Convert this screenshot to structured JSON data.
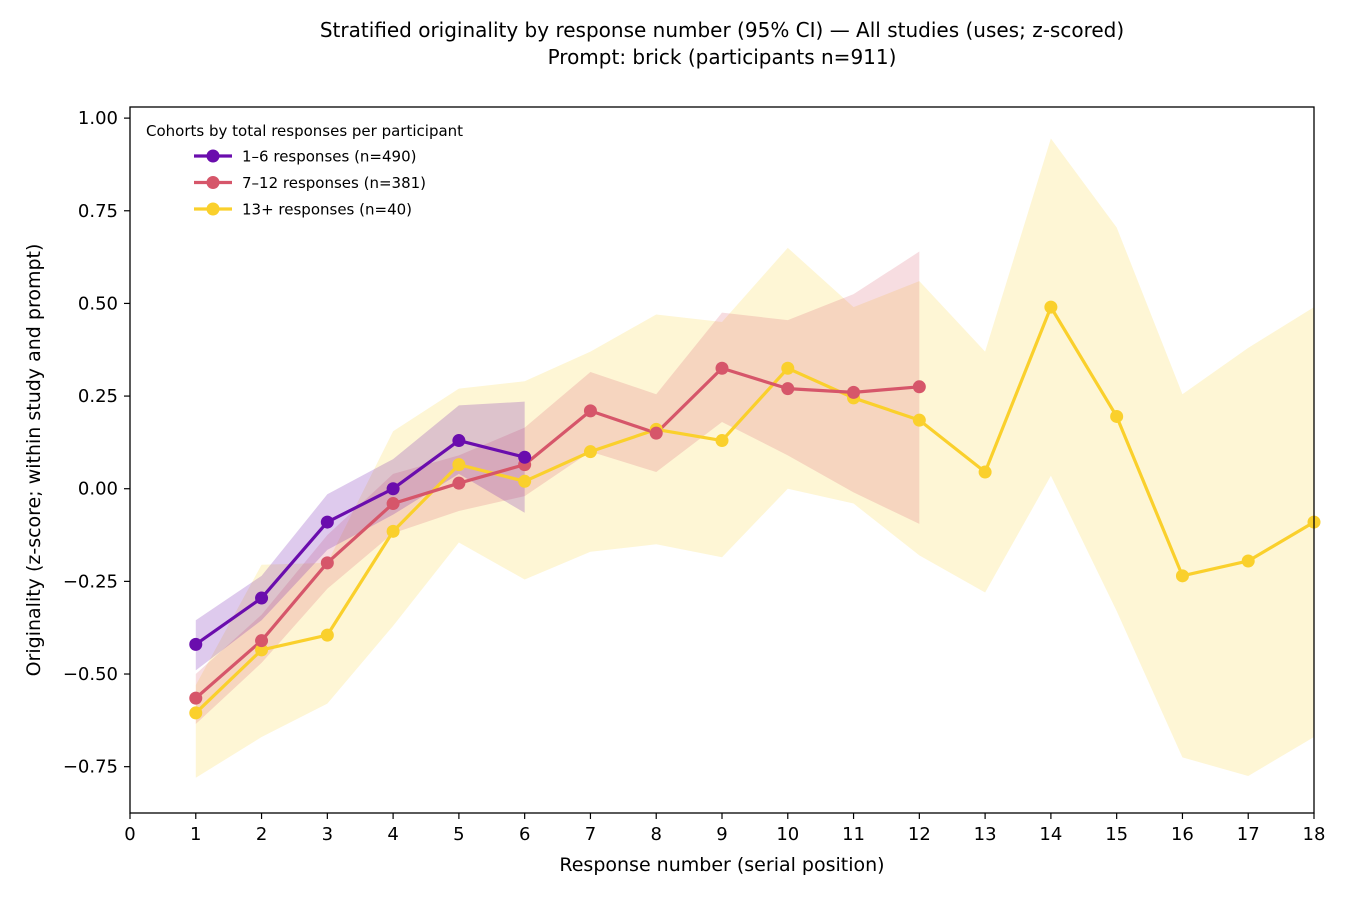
{
  "chart_data": {
    "type": "line",
    "title": "Stratified originality by response number (95% CI) — All studies (uses; z-scored)",
    "subtitle": "Prompt: brick (participants n=911)",
    "xlabel": "Response number (serial position)",
    "ylabel": "Originality (z-score; within study and prompt)",
    "xlim": [
      0,
      18
    ],
    "ylim": [
      -0.875,
      1.03
    ],
    "xticks": [
      0,
      1,
      2,
      3,
      4,
      5,
      6,
      7,
      8,
      9,
      10,
      11,
      12,
      13,
      14,
      15,
      16,
      17,
      18
    ],
    "yticks": [
      -0.75,
      -0.5,
      -0.25,
      0.0,
      0.25,
      0.5,
      0.75,
      1.0
    ],
    "ytick_labels": [
      "−0.75",
      "−0.50",
      "−0.25",
      "0.00",
      "0.25",
      "0.50",
      "0.75",
      "1.00"
    ],
    "grid": false,
    "legend_position": "top-left",
    "legend_title": "Cohorts by total responses per participant",
    "series": [
      {
        "name": "1–6 responses (n=490)",
        "color": "#6a0dad",
        "x": [
          1,
          2,
          3,
          4,
          5,
          6
        ],
        "y": [
          -0.42,
          -0.295,
          -0.09,
          0.0,
          0.13,
          0.085
        ],
        "ci_low": [
          -0.49,
          -0.355,
          -0.165,
          -0.07,
          0.04,
          -0.065
        ],
        "ci_high": [
          -0.355,
          -0.235,
          -0.015,
          0.08,
          0.225,
          0.235
        ]
      },
      {
        "name": "7–12 responses (n=381)",
        "color": "#d6566a",
        "x": [
          1,
          2,
          3,
          4,
          5,
          6,
          7,
          8,
          9,
          10,
          11,
          12
        ],
        "y": [
          -0.565,
          -0.41,
          -0.2,
          -0.04,
          0.015,
          0.065,
          0.21,
          0.15,
          0.325,
          0.27,
          0.26,
          0.275
        ],
        "ci_low": [
          -0.635,
          -0.47,
          -0.27,
          -0.12,
          -0.06,
          -0.02,
          0.1,
          0.045,
          0.18,
          0.09,
          -0.01,
          -0.095
        ],
        "ci_high": [
          -0.5,
          -0.34,
          -0.125,
          0.04,
          0.09,
          0.165,
          0.315,
          0.255,
          0.475,
          0.455,
          0.525,
          0.64
        ]
      },
      {
        "name": "13+ responses (n=40)",
        "color": "#fad02c",
        "x": [
          1,
          2,
          3,
          4,
          5,
          6,
          7,
          8,
          9,
          10,
          11,
          12,
          13,
          14,
          15,
          16,
          17,
          18
        ],
        "y": [
          -0.605,
          -0.435,
          -0.395,
          -0.115,
          0.065,
          0.02,
          0.1,
          0.16,
          0.13,
          0.325,
          0.245,
          0.185,
          0.045,
          0.49,
          0.195,
          -0.235,
          -0.195,
          -0.09
        ],
        "ci_low": [
          -0.78,
          -0.67,
          -0.58,
          -0.37,
          -0.145,
          -0.245,
          -0.17,
          -0.15,
          -0.185,
          0.0,
          -0.04,
          -0.18,
          -0.28,
          0.035,
          -0.33,
          -0.725,
          -0.775,
          -0.67
        ],
        "ci_high": [
          -0.53,
          -0.205,
          -0.2,
          0.155,
          0.27,
          0.29,
          0.37,
          0.47,
          0.45,
          0.65,
          0.49,
          0.56,
          0.37,
          0.945,
          0.705,
          0.255,
          0.38,
          0.49
        ]
      }
    ]
  }
}
